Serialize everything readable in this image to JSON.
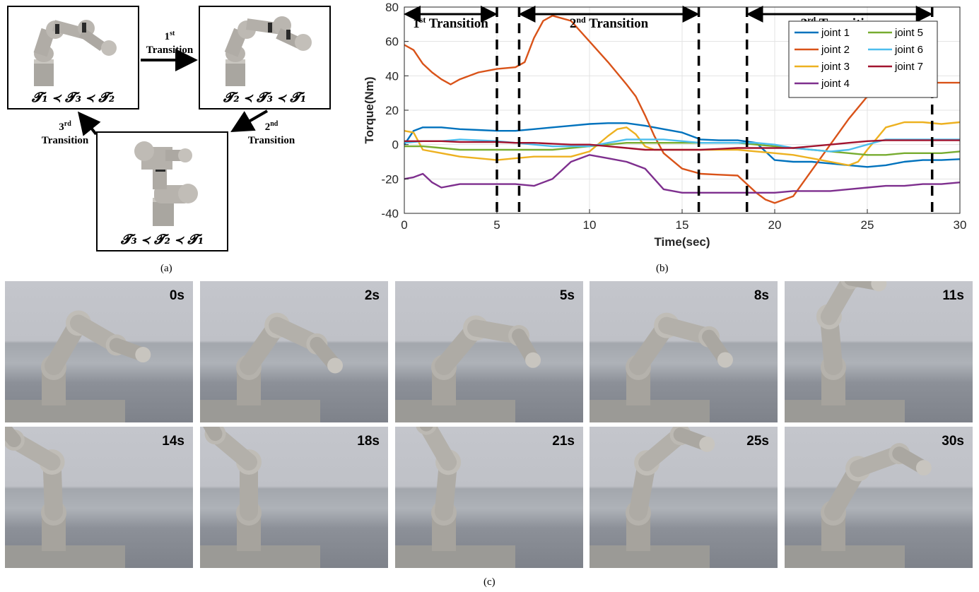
{
  "panel_a": {
    "caption": "(a)",
    "states": [
      {
        "order": "𝓣₁ ≺ 𝓣₃ ≺ 𝓣₂"
      },
      {
        "order": "𝓣₂ ≺ 𝓣₃ ≺ 𝓣₁"
      },
      {
        "order": "𝓣₃ ≺ 𝓣₂ ≺ 𝓣₁"
      }
    ],
    "transitions": [
      {
        "ordinal": "1",
        "sup": "st",
        "word": "Transition"
      },
      {
        "ordinal": "2",
        "sup": "nd",
        "word": "Transition"
      },
      {
        "ordinal": "3",
        "sup": "rd",
        "word": "Transition"
      }
    ]
  },
  "panel_b": {
    "caption": "(b)"
  },
  "panel_c": {
    "caption": "(c)",
    "frames": [
      {
        "time": "0s"
      },
      {
        "time": "2s"
      },
      {
        "time": "5s"
      },
      {
        "time": "8s"
      },
      {
        "time": "11s"
      },
      {
        "time": "14s"
      },
      {
        "time": "18s"
      },
      {
        "time": "21s"
      },
      {
        "time": "25s"
      },
      {
        "time": "30s"
      }
    ]
  },
  "chart_data": {
    "type": "line",
    "xlabel": "Time(sec)",
    "ylabel": "Torque(Nm)",
    "xlim": [
      0,
      30
    ],
    "ylim": [
      -40,
      80
    ],
    "xticks": [
      0,
      5,
      10,
      15,
      20,
      25,
      30
    ],
    "yticks": [
      -40,
      -20,
      0,
      20,
      40,
      60,
      80
    ],
    "grid": true,
    "legend_position": "top-right",
    "transition_lines": [
      5,
      6.2,
      15.9,
      18.5,
      28.5
    ],
    "transitions": [
      {
        "ordinal": "1",
        "sup": "st",
        "word": "Transition",
        "start": 0,
        "end": 5
      },
      {
        "ordinal": "2",
        "sup": "nd",
        "word": "Transition",
        "start": 6.2,
        "end": 15.9
      },
      {
        "ordinal": "3",
        "sup": "rd",
        "word": "Transition",
        "start": 18.5,
        "end": 28.5
      }
    ],
    "series": [
      {
        "name": "joint 1",
        "color": "#0072BD",
        "x": [
          0,
          0.5,
          1,
          2,
          3,
          4,
          5,
          6,
          7,
          8,
          9,
          10,
          11,
          12,
          13,
          14,
          15,
          16,
          17,
          18,
          19,
          20,
          21,
          22,
          23,
          24,
          25,
          26,
          27,
          28,
          29,
          30
        ],
        "y": [
          0,
          8,
          10,
          10,
          9,
          8.5,
          8,
          8,
          9,
          10,
          11,
          12,
          12.5,
          12.5,
          11,
          9,
          7,
          3,
          2.5,
          2.5,
          1,
          -9,
          -10,
          -10,
          -11,
          -12,
          -13,
          -12,
          -10,
          -9,
          -9,
          -8.5
        ]
      },
      {
        "name": "joint 2",
        "color": "#D95319",
        "x": [
          0,
          0.5,
          1,
          1.5,
          2,
          2.5,
          3,
          4,
          5,
          6,
          6.5,
          7,
          7.5,
          8,
          9,
          10,
          11,
          12,
          12.5,
          13,
          13.5,
          14,
          15,
          16,
          17,
          18,
          19,
          19.5,
          20,
          21,
          22,
          23,
          24,
          25,
          26,
          27,
          28,
          29,
          30
        ],
        "y": [
          58,
          55,
          47,
          42,
          38,
          35,
          38,
          42,
          44,
          45,
          48,
          62,
          72,
          75,
          72,
          60,
          48,
          35,
          28,
          17,
          5,
          -5,
          -14,
          -17,
          -17.5,
          -18,
          -28,
          -32,
          -34,
          -30,
          -15,
          0,
          15,
          28,
          33,
          35,
          36,
          36,
          36
        ]
      },
      {
        "name": "joint 3",
        "color": "#EDB120",
        "x": [
          0,
          0.5,
          1,
          2,
          3,
          4,
          5,
          6,
          7,
          8,
          9,
          10,
          11,
          11.5,
          12,
          12.5,
          13,
          13.5,
          14,
          15,
          16,
          17,
          18,
          19,
          20,
          21,
          22,
          23,
          24,
          24.5,
          25,
          26,
          27,
          28,
          29,
          30
        ],
        "y": [
          8,
          7,
          -3,
          -5,
          -7,
          -8,
          -9,
          -8,
          -7,
          -7,
          -7,
          -4,
          5,
          9,
          10,
          6,
          -1,
          -3,
          -3,
          -3,
          -3,
          -3,
          -3,
          -4,
          -5,
          -6,
          -8,
          -10,
          -12,
          -10,
          -3,
          10,
          13,
          13,
          12,
          13
        ]
      },
      {
        "name": "joint 4",
        "color": "#7E2F8E",
        "x": [
          0,
          0.5,
          1,
          1.5,
          2,
          3,
          4,
          5,
          6,
          7,
          8,
          9,
          10,
          11,
          12,
          13,
          14,
          15,
          16,
          17,
          18,
          19,
          20,
          21,
          22,
          23,
          24,
          25,
          26,
          27,
          28,
          29,
          30
        ],
        "y": [
          -20,
          -19,
          -17,
          -22,
          -25,
          -23,
          -23,
          -23,
          -23,
          -24,
          -20,
          -10,
          -6,
          -8,
          -10,
          -14,
          -26,
          -28,
          -28,
          -28,
          -28,
          -28,
          -28,
          -27,
          -27,
          -27,
          -26,
          -25,
          -24,
          -24,
          -23,
          -23,
          -22
        ]
      },
      {
        "name": "joint 5",
        "color": "#77AC30",
        "x": [
          0,
          1,
          2,
          3,
          4,
          5,
          6,
          7,
          8,
          9,
          10,
          11,
          12,
          13,
          14,
          15,
          16,
          17,
          18,
          19,
          20,
          21,
          22,
          23,
          24,
          25,
          26,
          27,
          28,
          29,
          30
        ],
        "y": [
          -1,
          -1,
          -2,
          -3,
          -3,
          -3,
          -3,
          -3,
          -3,
          -2,
          -1,
          0,
          1,
          1,
          1,
          1,
          1,
          1,
          1,
          0,
          -1,
          -2,
          -3,
          -4,
          -5,
          -6,
          -6,
          -5,
          -5,
          -5,
          -4
        ]
      },
      {
        "name": "joint 6",
        "color": "#4DBEEE",
        "x": [
          0,
          1,
          2,
          3,
          4,
          5,
          6,
          7,
          8,
          9,
          10,
          11,
          12,
          13,
          14,
          15,
          16,
          17,
          18,
          19,
          20,
          21,
          22,
          23,
          24,
          25,
          26,
          27,
          28,
          29,
          30
        ],
        "y": [
          1,
          2,
          2,
          3,
          2.5,
          2,
          1,
          0,
          -1,
          -1,
          -1,
          1,
          3,
          3,
          3,
          2,
          1,
          1,
          1,
          1,
          0,
          -2,
          -3,
          -4,
          -3,
          0,
          3,
          3,
          3,
          3,
          3
        ]
      },
      {
        "name": "joint 7",
        "color": "#A2142F",
        "x": [
          0,
          1,
          2,
          3,
          4,
          5,
          6,
          7,
          8,
          9,
          10,
          11,
          12,
          13,
          14,
          15,
          16,
          17,
          18,
          19,
          20,
          21,
          22,
          23,
          24,
          25,
          26,
          27,
          28,
          29,
          30
        ],
        "y": [
          2,
          2,
          2,
          1.5,
          1.5,
          1.5,
          1,
          1,
          0.5,
          0,
          0,
          -1,
          -2,
          -3,
          -3,
          -3,
          -3,
          -2.5,
          -2,
          -2,
          -2,
          -2,
          -1,
          0,
          1,
          2,
          2.5,
          2.5,
          2.5,
          2.5,
          2.5
        ]
      }
    ]
  }
}
